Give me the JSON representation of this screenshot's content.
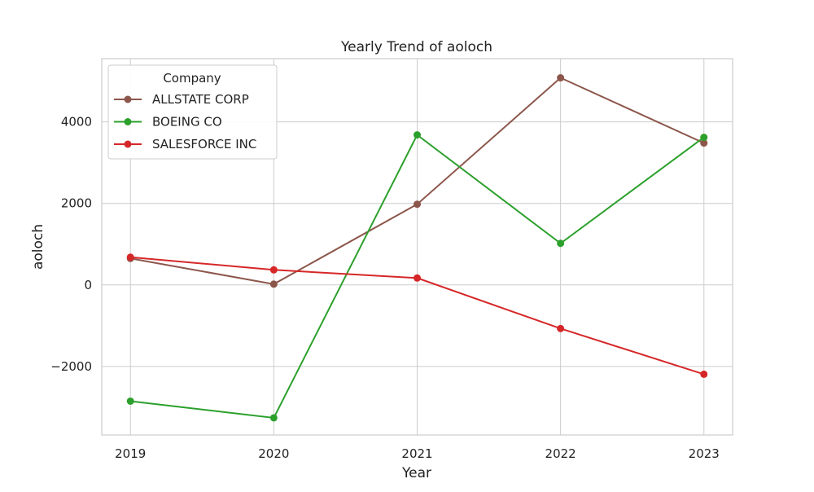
{
  "chart_data": {
    "type": "line",
    "title": "Yearly Trend of aoloch",
    "xlabel": "Year",
    "ylabel": "aoloch",
    "x": [
      2019,
      2020,
      2021,
      2022,
      2023
    ],
    "xlim": [
      2018.8,
      2023.2
    ],
    "ylim": [
      -3680,
      5550
    ],
    "yticks": [
      -2000,
      0,
      2000,
      4000
    ],
    "grid": true,
    "legend": {
      "title": "Company",
      "placement": "top-left"
    },
    "series": [
      {
        "name": "ALLSTATE CORP",
        "color": "#8c564b",
        "values": [
          650,
          20,
          1980,
          5080,
          3480
        ]
      },
      {
        "name": "BOEING CO",
        "color": "#2ca02c",
        "values": [
          -2850,
          -3260,
          3680,
          1020,
          3620
        ]
      },
      {
        "name": "SALESFORCE INC",
        "color": "#d62728",
        "values": [
          680,
          370,
          170,
          -1070,
          -2190
        ]
      }
    ]
  }
}
